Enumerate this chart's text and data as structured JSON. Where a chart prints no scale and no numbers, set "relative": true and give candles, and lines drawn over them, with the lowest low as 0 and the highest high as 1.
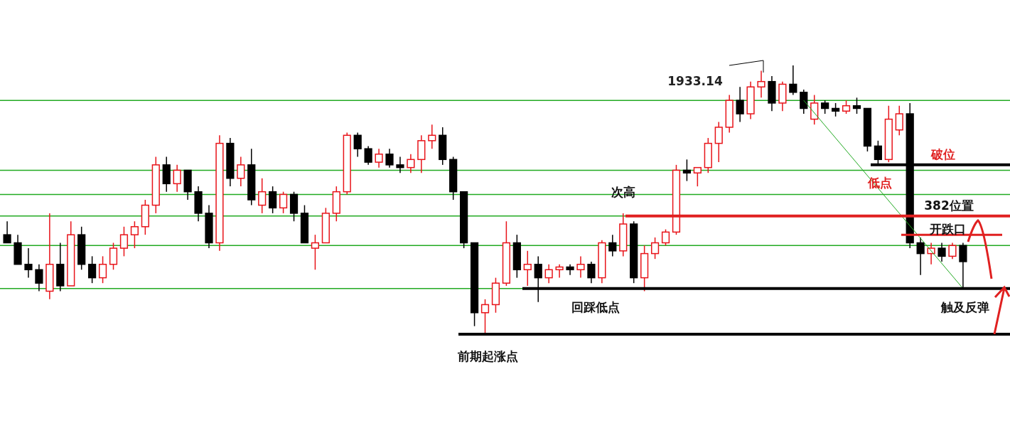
{
  "chart_data": {
    "type": "candlestick",
    "relative": true,
    "categories": [
      null,
      null,
      null,
      null,
      null,
      null,
      null,
      null,
      null,
      null,
      null,
      null,
      null,
      null,
      null,
      null,
      null,
      null,
      null,
      null,
      null,
      null,
      null,
      null,
      null,
      null,
      null,
      null,
      null,
      null,
      null,
      null,
      null,
      null,
      null,
      null,
      null,
      null,
      null,
      null,
      null,
      null,
      null,
      null,
      null,
      null,
      null,
      null,
      null,
      null,
      null,
      null,
      null,
      null,
      null,
      null,
      null,
      null,
      null,
      null,
      null,
      null,
      null,
      null,
      null,
      null,
      null,
      null,
      null,
      null,
      null,
      null,
      null,
      null,
      null,
      null,
      null,
      null,
      null,
      null,
      null,
      null,
      null,
      null,
      null,
      null,
      null,
      null,
      null,
      null,
      null
    ],
    "ohlc": [
      [
        0.37,
        0.42,
        0.34,
        0.34
      ],
      [
        0.34,
        0.37,
        0.26,
        0.26
      ],
      [
        0.26,
        0.32,
        0.21,
        0.24
      ],
      [
        0.24,
        0.26,
        0.16,
        0.19
      ],
      [
        0.16,
        0.45,
        0.13,
        0.26
      ],
      [
        0.26,
        0.34,
        0.16,
        0.18
      ],
      [
        0.18,
        0.42,
        0.18,
        0.37
      ],
      [
        0.37,
        0.4,
        0.24,
        0.26
      ],
      [
        0.26,
        0.29,
        0.19,
        0.21
      ],
      [
        0.21,
        0.29,
        0.19,
        0.26
      ],
      [
        0.26,
        0.34,
        0.24,
        0.32
      ],
      [
        0.32,
        0.4,
        0.29,
        0.37
      ],
      [
        0.37,
        0.42,
        0.32,
        0.4
      ],
      [
        0.4,
        0.5,
        0.37,
        0.48
      ],
      [
        0.48,
        0.66,
        0.45,
        0.63
      ],
      [
        0.63,
        0.66,
        0.53,
        0.56
      ],
      [
        0.56,
        0.63,
        0.53,
        0.61
      ],
      [
        0.61,
        0.61,
        0.5,
        0.53
      ],
      [
        0.53,
        0.55,
        0.42,
        0.45
      ],
      [
        0.45,
        0.48,
        0.32,
        0.34
      ],
      [
        0.34,
        0.74,
        0.31,
        0.71
      ],
      [
        0.71,
        0.73,
        0.55,
        0.58
      ],
      [
        0.58,
        0.66,
        0.55,
        0.63
      ],
      [
        0.63,
        0.69,
        0.48,
        0.5
      ],
      [
        0.48,
        0.58,
        0.45,
        0.53
      ],
      [
        0.53,
        0.55,
        0.45,
        0.47
      ],
      [
        0.47,
        0.53,
        0.45,
        0.52
      ],
      [
        0.52,
        0.53,
        0.42,
        0.45
      ],
      [
        0.45,
        0.48,
        0.34,
        0.34
      ],
      [
        0.32,
        0.37,
        0.24,
        0.34
      ],
      [
        0.34,
        0.47,
        0.34,
        0.45
      ],
      [
        0.45,
        0.55,
        0.42,
        0.53
      ],
      [
        0.53,
        0.75,
        0.52,
        0.74
      ],
      [
        0.74,
        0.75,
        0.66,
        0.69
      ],
      [
        0.69,
        0.7,
        0.63,
        0.64
      ],
      [
        0.64,
        0.69,
        0.62,
        0.67
      ],
      [
        0.67,
        0.69,
        0.62,
        0.63
      ],
      [
        0.63,
        0.66,
        0.6,
        0.62
      ],
      [
        0.62,
        0.67,
        0.6,
        0.65
      ],
      [
        0.65,
        0.74,
        0.6,
        0.72
      ],
      [
        0.72,
        0.78,
        0.69,
        0.74
      ],
      [
        0.74,
        0.77,
        0.63,
        0.65
      ],
      [
        0.65,
        0.66,
        0.5,
        0.53
      ],
      [
        0.53,
        0.53,
        0.32,
        0.34
      ],
      [
        0.34,
        0.34,
        0.03,
        0.08
      ],
      [
        0.08,
        0.13,
        0.0,
        0.11
      ],
      [
        0.11,
        0.21,
        0.08,
        0.19
      ],
      [
        0.19,
        0.42,
        0.18,
        0.34
      ],
      [
        0.34,
        0.37,
        0.21,
        0.24
      ],
      [
        0.24,
        0.31,
        0.18,
        0.26
      ],
      [
        0.26,
        0.29,
        0.12,
        0.21
      ],
      [
        0.21,
        0.26,
        0.19,
        0.24
      ],
      [
        0.24,
        0.26,
        0.21,
        0.25
      ],
      [
        0.25,
        0.26,
        0.22,
        0.24
      ],
      [
        0.24,
        0.29,
        0.21,
        0.26
      ],
      [
        0.26,
        0.27,
        0.19,
        0.21
      ],
      [
        0.21,
        0.35,
        0.19,
        0.34
      ],
      [
        0.34,
        0.37,
        0.29,
        0.31
      ],
      [
        0.31,
        0.45,
        0.29,
        0.41
      ],
      [
        0.41,
        0.42,
        0.19,
        0.21
      ],
      [
        0.21,
        0.33,
        0.16,
        0.3
      ],
      [
        0.3,
        0.36,
        0.28,
        0.34
      ],
      [
        0.34,
        0.39,
        0.33,
        0.38
      ],
      [
        0.38,
        0.63,
        0.37,
        0.61
      ],
      [
        0.61,
        0.65,
        0.57,
        0.6
      ],
      [
        0.6,
        0.62,
        0.55,
        0.62
      ],
      [
        0.62,
        0.73,
        0.6,
        0.71
      ],
      [
        0.71,
        0.79,
        0.64,
        0.77
      ],
      [
        0.77,
        0.89,
        0.75,
        0.87
      ],
      [
        0.87,
        0.92,
        0.79,
        0.82
      ],
      [
        0.82,
        0.94,
        0.8,
        0.92
      ],
      [
        0.92,
        0.98,
        0.88,
        0.94
      ],
      [
        0.94,
        0.96,
        0.83,
        0.86
      ],
      [
        0.86,
        0.94,
        0.83,
        0.93
      ],
      [
        0.93,
        1.0,
        0.89,
        0.9
      ],
      [
        0.9,
        0.91,
        0.82,
        0.84
      ],
      [
        0.8,
        0.89,
        0.78,
        0.86
      ],
      [
        0.86,
        0.87,
        0.82,
        0.84
      ],
      [
        0.84,
        0.86,
        0.81,
        0.83
      ],
      [
        0.83,
        0.87,
        0.82,
        0.85
      ],
      [
        0.85,
        0.88,
        0.82,
        0.84
      ],
      [
        0.84,
        0.84,
        0.68,
        0.7
      ],
      [
        0.7,
        0.72,
        0.63,
        0.65
      ],
      [
        0.65,
        0.85,
        0.64,
        0.8
      ],
      [
        0.76,
        0.85,
        0.74,
        0.82
      ],
      [
        0.82,
        0.86,
        0.32,
        0.34
      ],
      [
        0.34,
        0.36,
        0.22,
        0.3
      ],
      [
        0.3,
        0.34,
        0.26,
        0.32
      ],
      [
        0.32,
        0.34,
        0.27,
        0.29
      ],
      [
        0.29,
        0.34,
        0.28,
        0.33
      ],
      [
        0.33,
        0.34,
        0.17,
        0.27
      ]
    ],
    "series": [
      {
        "type": "line",
        "color": "#22aa22",
        "values": [
          null,
          null,
          null,
          null,
          null,
          null,
          null,
          null,
          null,
          null,
          null,
          null,
          null,
          null,
          null,
          null,
          null,
          null,
          null,
          null,
          null,
          null,
          null,
          null,
          null,
          null,
          null,
          null,
          null,
          null,
          null,
          null,
          null,
          null,
          null,
          null,
          null,
          null,
          null,
          null,
          null,
          null,
          null,
          null,
          null,
          null,
          null,
          null,
          null,
          null,
          null,
          null,
          null,
          null,
          null,
          null,
          null,
          null,
          null,
          null,
          null,
          null,
          null,
          null,
          null,
          null,
          null,
          null,
          null,
          null,
          null,
          null,
          null,
          null,
          null,
          0.87,
          null,
          null,
          null,
          null,
          null,
          null,
          null,
          null,
          null,
          null,
          null,
          null,
          null,
          null,
          0.17
        ]
      }
    ],
    "ref_lines": [
      {
        "axis": "y",
        "value": 0.87,
        "color": "#22aa22"
      },
      {
        "axis": "y",
        "value": 0.61,
        "color": "#22aa22"
      },
      {
        "axis": "y",
        "value": 0.52,
        "color": "#22aa22"
      },
      {
        "axis": "y",
        "value": 0.44,
        "color": "#22aa22"
      },
      {
        "axis": "y",
        "value": 0.33,
        "color": "#22aa22"
      },
      {
        "axis": "y",
        "value": 0.17,
        "color": "#22aa22"
      },
      {
        "axis": "y",
        "value": 0.63,
        "color": "#000000",
        "label": "破位"
      },
      {
        "axis": "y",
        "value": 0.17,
        "color": "#000000",
        "label": "回踩低点"
      },
      {
        "axis": "y",
        "value": 0.0,
        "color": "#000000",
        "label": "前期起涨点"
      },
      {
        "axis": "y",
        "value": 0.44,
        "color": "#e02020",
        "label": "382位置"
      },
      {
        "axis": "y",
        "value": 0.37,
        "color": "#e02020",
        "label": "开跌口"
      }
    ],
    "annotations": [
      "1933.14",
      {
        "text": "次高",
        "y": 0.45
      },
      "低点",
      {
        "text": "触及反弹",
        "y": 0.17
      }
    ]
  }
}
